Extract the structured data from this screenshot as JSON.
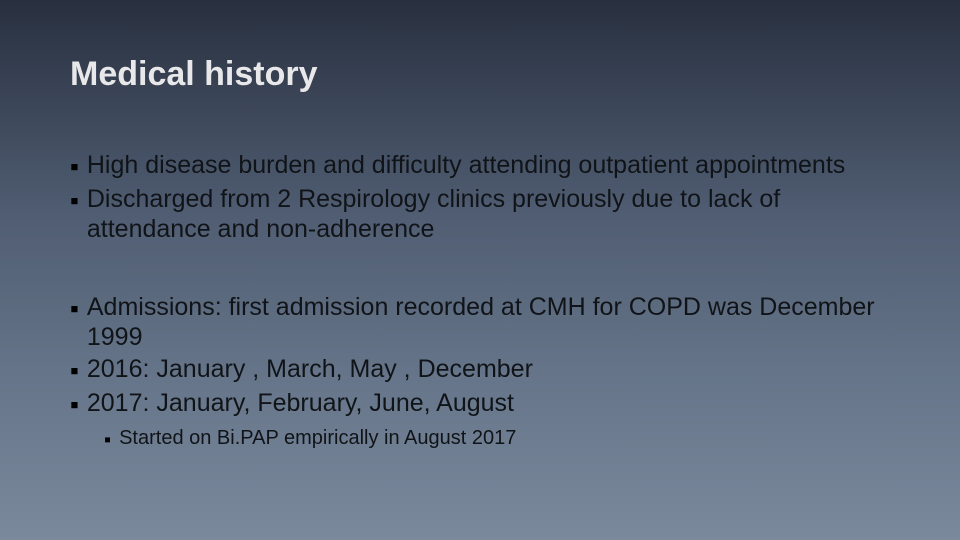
{
  "slide": {
    "title": "Medical history",
    "colors": {
      "bg_gradient_top": "#28303f",
      "bg_gradient_mid1": "#505d72",
      "bg_gradient_mid2": "#667589",
      "bg_gradient_bottom": "#7a899c",
      "title_color": "#e8e8ea",
      "body_color": "#101418",
      "bullet_color": "#000000"
    },
    "typography": {
      "title_fontsize": 34,
      "title_weight": "bold",
      "body_level1_fontsize": 25,
      "body_level2_fontsize": 20,
      "font_family": "Arial"
    },
    "groups": [
      {
        "items": [
          {
            "level": 1,
            "text": "High disease burden and difficulty attending outpatient appointments"
          },
          {
            "level": 1,
            "text": "Discharged from 2 Respirology clinics previously due to lack of attendance and non-adherence"
          }
        ]
      },
      {
        "items": [
          {
            "level": 1,
            "text": "Admissions: first admission recorded at CMH for COPD was December 1999"
          },
          {
            "level": 1,
            "text": "2016: January , March, May , December"
          },
          {
            "level": 1,
            "text": "2017: January, February, June, August"
          },
          {
            "level": 2,
            "text": "Started on Bi.PAP empirically in August 2017"
          }
        ]
      }
    ],
    "bullet_glyph": "▪"
  }
}
